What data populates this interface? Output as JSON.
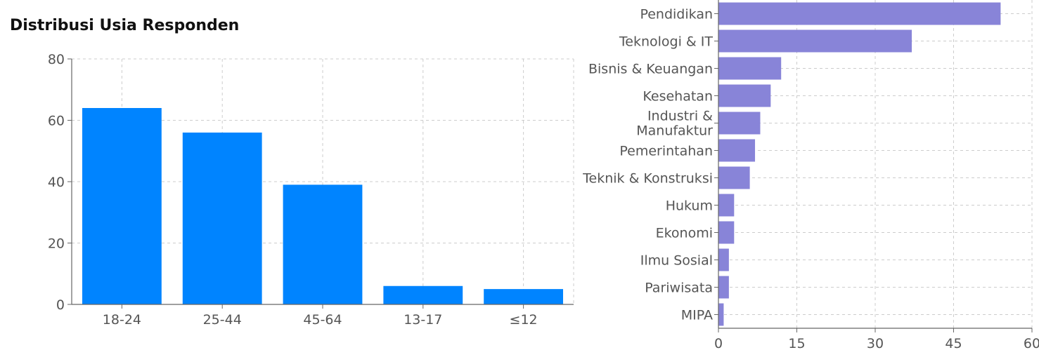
{
  "colors": {
    "left_bar": "#0084ff",
    "right_bar": "#8884d8",
    "grid": "#cccccc",
    "axis": "#666666"
  },
  "chart_data": [
    {
      "type": "bar",
      "orientation": "vertical",
      "title": "Distribusi Usia Responden",
      "categories": [
        "18-24",
        "25-44",
        "45-64",
        "13-17",
        "≤12"
      ],
      "values": [
        64,
        56,
        39,
        6,
        5
      ],
      "ylim": [
        0,
        80
      ],
      "yticks": [
        0,
        20,
        40,
        60,
        80
      ],
      "grid": true
    },
    {
      "type": "bar",
      "orientation": "horizontal",
      "title": "",
      "categories": [
        "Pendidikan",
        "Teknologi & IT",
        "Bisnis & Keuangan",
        "Kesehatan",
        "Industri & Manufaktur",
        "Pemerintahan",
        "Teknik & Konstruksi",
        "Hukum",
        "Ekonomi",
        "Ilmu Sosial",
        "Pariwisata",
        "MIPA"
      ],
      "values": [
        54,
        37,
        12,
        10,
        8,
        7,
        6,
        3,
        3,
        2,
        2,
        1
      ],
      "xlim": [
        0,
        60
      ],
      "xticks": [
        0,
        15,
        30,
        45,
        60
      ],
      "grid": true
    }
  ]
}
